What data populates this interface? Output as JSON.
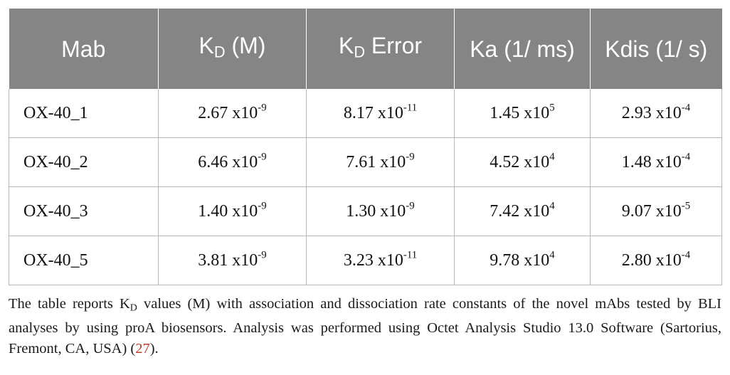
{
  "table": {
    "headers": {
      "mab": "Mab",
      "kd_k": "K",
      "kd_sub": "D",
      "kd_rest": " (M)",
      "kderr_k": "K",
      "kderr_sub": "D",
      "kderr_rest": " Error",
      "ka": "Ka (1/ ms)",
      "kdis": "Kdis (1/ s)"
    },
    "rows": [
      {
        "mab": "OX-40_1",
        "kd": "2.67 x10",
        "kd_exp": "-9",
        "kderr": "8.17 x10",
        "kderr_exp": "-11",
        "ka": "1.45 x10",
        "ka_exp": "5",
        "kdis": "2.93 x10",
        "kdis_exp": "-4"
      },
      {
        "mab": "OX-40_2",
        "kd": "6.46 x10",
        "kd_exp": "-9",
        "kderr": "7.61 x10",
        "kderr_exp": "-9",
        "ka": "4.52 x10",
        "ka_exp": "4",
        "kdis": "1.48 x10",
        "kdis_exp": "-4"
      },
      {
        "mab": "OX-40_3",
        "kd": "1.40 x10",
        "kd_exp": "-9",
        "kderr": "1.30 x10",
        "kderr_exp": "-9",
        "ka": "7.42 x10",
        "ka_exp": "4",
        "kdis": "9.07 x10",
        "kdis_exp": "-5"
      },
      {
        "mab": "OX-40_5",
        "kd": "3.81 x10",
        "kd_exp": "-9",
        "kderr": "3.23 x10",
        "kderr_exp": "-11",
        "ka": "9.78 x10",
        "ka_exp": "4",
        "kdis": "2.80 x10",
        "kdis_exp": "-4"
      }
    ]
  },
  "footnote": {
    "part1": "The table reports K",
    "sub": "D",
    "part2": " values (M) with association and dissociation rate constants of the novel mAbs tested by BLI analyses by using proA biosensors. Analysis was performed using Octet Analysis Studio 13.0 Software (Sartorius, Fremont, CA, USA) (",
    "ref": "27",
    "part3": ")."
  }
}
